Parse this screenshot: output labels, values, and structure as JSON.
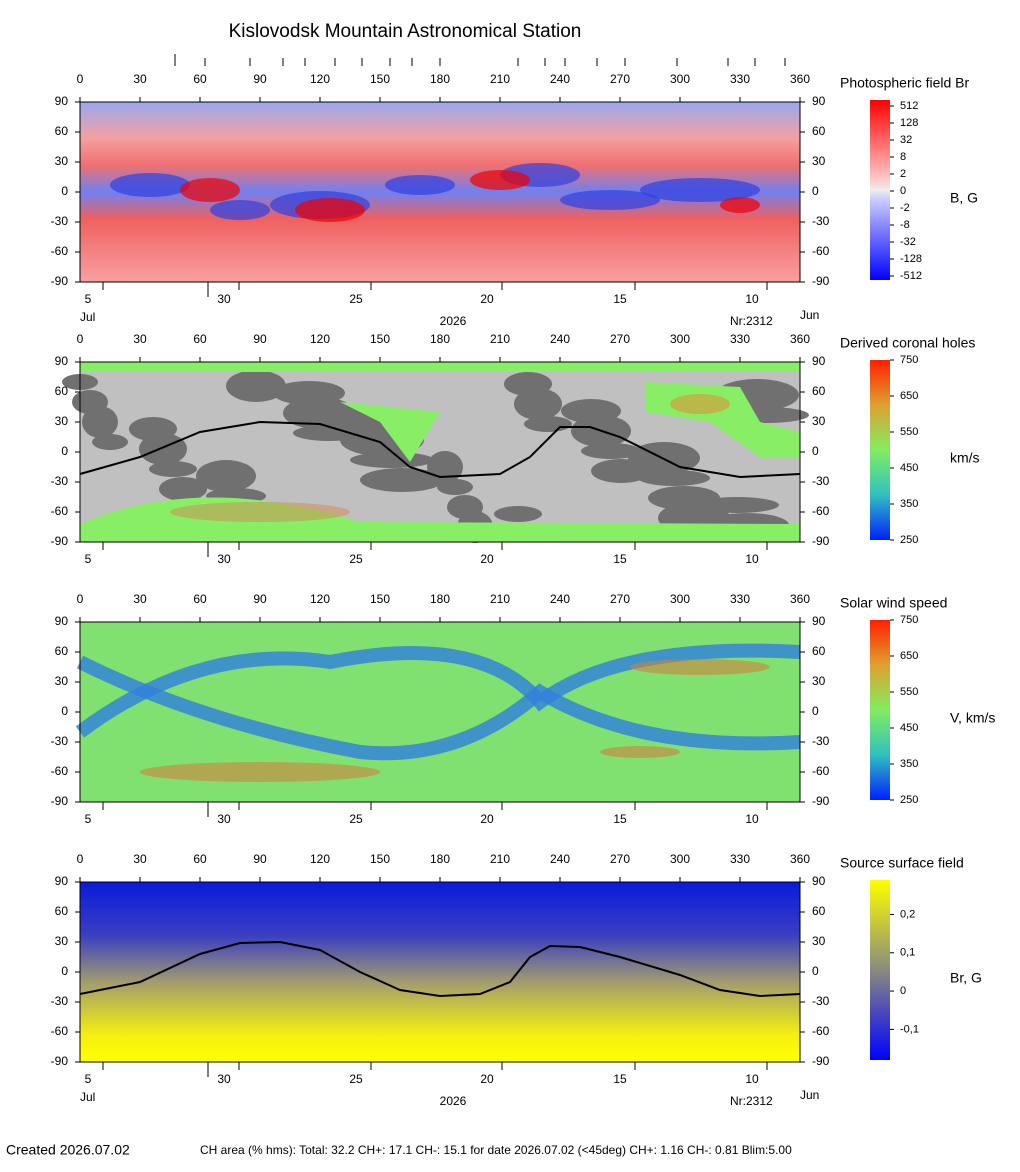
{
  "title": "Kislovodsk Mountain Astronomical Station",
  "top_marks": [
    47.5,
    62.5,
    85,
    101.5,
    112.5,
    127.5,
    141,
    155,
    166,
    180,
    219,
    232.5,
    242.5,
    258.5,
    272.5,
    298.5,
    324,
    337.5,
    352.5
  ],
  "created": "Created  2026.07.02",
  "summary": "CH area (% hms): Total: 32.2 CH+: 17.1   CH-: 15.1 for date 2026.07.02 (<45deg) CH+: 1.16    CH-: 0.81 Blim:5.00",
  "chart_data": [
    {
      "type": "heatmap",
      "colormap": "red-blue",
      "colorbar_title": "Photospheric field Br",
      "colorbar_unit": "B, G",
      "xlim": [
        0,
        360
      ],
      "xticks": [
        0,
        30,
        60,
        90,
        120,
        150,
        180,
        210,
        240,
        270,
        300,
        330,
        360
      ],
      "ylim": [
        -90,
        90
      ],
      "yticks": [
        90,
        60,
        30,
        0,
        -30,
        -60,
        -90
      ],
      "date_ticks": [
        {
          "value": 4,
          "label": "5"
        },
        {
          "value": 72,
          "label": "30"
        },
        {
          "value": 138,
          "label": "25"
        },
        {
          "value": 203.5,
          "label": "20"
        },
        {
          "value": 270,
          "label": "15"
        },
        {
          "value": 336,
          "label": "10"
        }
      ],
      "colorbar_scale": "discrete",
      "colorbar_ticks": [
        512,
        128,
        32,
        8,
        2,
        0,
        -2,
        -8,
        -32,
        -128,
        -512
      ],
      "axis_notes": {
        "start": "Jul",
        "year": "2026",
        "rotation": "Nr:2312",
        "end": "Jun"
      }
    },
    {
      "type": "heatmap",
      "colormap": "coronal",
      "colorbar_title": "Derived coronal holes",
      "colorbar_unit": "km/s",
      "xlim": [
        0,
        360
      ],
      "xticks": [
        0,
        30,
        60,
        90,
        120,
        150,
        180,
        210,
        240,
        270,
        300,
        330,
        360
      ],
      "ylim": [
        -90,
        90
      ],
      "yticks": [
        90,
        60,
        30,
        0,
        -30,
        -60,
        -90
      ],
      "date_ticks": [
        {
          "value": 4,
          "label": "5"
        },
        {
          "value": 72,
          "label": "30"
        },
        {
          "value": 138,
          "label": "25"
        },
        {
          "value": 203.5,
          "label": "20"
        },
        {
          "value": 270,
          "label": "15"
        },
        {
          "value": 336,
          "label": "10"
        }
      ],
      "colorbar_scale": "linear",
      "clim": [
        250,
        750
      ],
      "colorbar_ticks": [
        750,
        650,
        550,
        450,
        350,
        250
      ],
      "line": {
        "x": [
          0,
          30,
          60,
          90,
          120,
          150,
          165,
          180,
          210,
          225,
          240,
          255,
          270,
          300,
          330,
          360
        ],
        "values": [
          -22,
          -5,
          20,
          30,
          28,
          10,
          -15,
          -25,
          -22,
          -5,
          25,
          25,
          15,
          -15,
          -25,
          -22
        ]
      }
    },
    {
      "type": "heatmap",
      "colormap": "wind",
      "colorbar_title": "Solar wind speed",
      "colorbar_unit": "V, km/s",
      "xlim": [
        0,
        360
      ],
      "xticks": [
        0,
        30,
        60,
        90,
        120,
        150,
        180,
        210,
        240,
        270,
        300,
        330,
        360
      ],
      "ylim": [
        -90,
        90
      ],
      "yticks": [
        90,
        60,
        30,
        0,
        -30,
        -60,
        -90
      ],
      "date_ticks": [
        {
          "value": 4,
          "label": "5"
        },
        {
          "value": 72,
          "label": "30"
        },
        {
          "value": 138,
          "label": "25"
        },
        {
          "value": 203.5,
          "label": "20"
        },
        {
          "value": 270,
          "label": "15"
        },
        {
          "value": 336,
          "label": "10"
        }
      ],
      "colorbar_scale": "linear",
      "clim": [
        250,
        750
      ],
      "colorbar_ticks": [
        750,
        650,
        550,
        450,
        350,
        250
      ]
    },
    {
      "type": "heatmap",
      "colormap": "blue-yellow",
      "colorbar_title": "Source surface field",
      "colorbar_unit": "Br, G",
      "xlim": [
        0,
        360
      ],
      "xticks": [
        0,
        30,
        60,
        90,
        120,
        150,
        180,
        210,
        240,
        270,
        300,
        330,
        360
      ],
      "ylim": [
        -90,
        90
      ],
      "yticks": [
        90,
        60,
        30,
        0,
        -30,
        -60,
        -90
      ],
      "date_ticks": [
        {
          "value": 4,
          "label": "5"
        },
        {
          "value": 72,
          "label": "30"
        },
        {
          "value": 138,
          "label": "25"
        },
        {
          "value": 203.5,
          "label": "20"
        },
        {
          "value": 270,
          "label": "15"
        },
        {
          "value": 336,
          "label": "10"
        }
      ],
      "colorbar_scale": "linear",
      "clim": [
        -0.18,
        0.29
      ],
      "colorbar_ticks": [
        {
          "value": 0.2,
          "label": "0,2"
        },
        {
          "value": 0.1,
          "label": "0,1"
        },
        0,
        {
          "value": -0.1,
          "label": "-0,1"
        }
      ],
      "line": {
        "x": [
          0,
          30,
          60,
          80,
          100,
          120,
          140,
          160,
          180,
          200,
          215,
          225,
          235,
          250,
          270,
          300,
          320,
          340,
          360
        ],
        "values": [
          -22,
          -10,
          18,
          29,
          30,
          22,
          0,
          -18,
          -24,
          -22,
          -10,
          15,
          26,
          25,
          15,
          -3,
          -18,
          -24,
          -22
        ]
      },
      "axis_notes": {
        "start": "Jul",
        "year": "2026",
        "rotation": "Nr:2312",
        "end": "Jun"
      }
    }
  ]
}
